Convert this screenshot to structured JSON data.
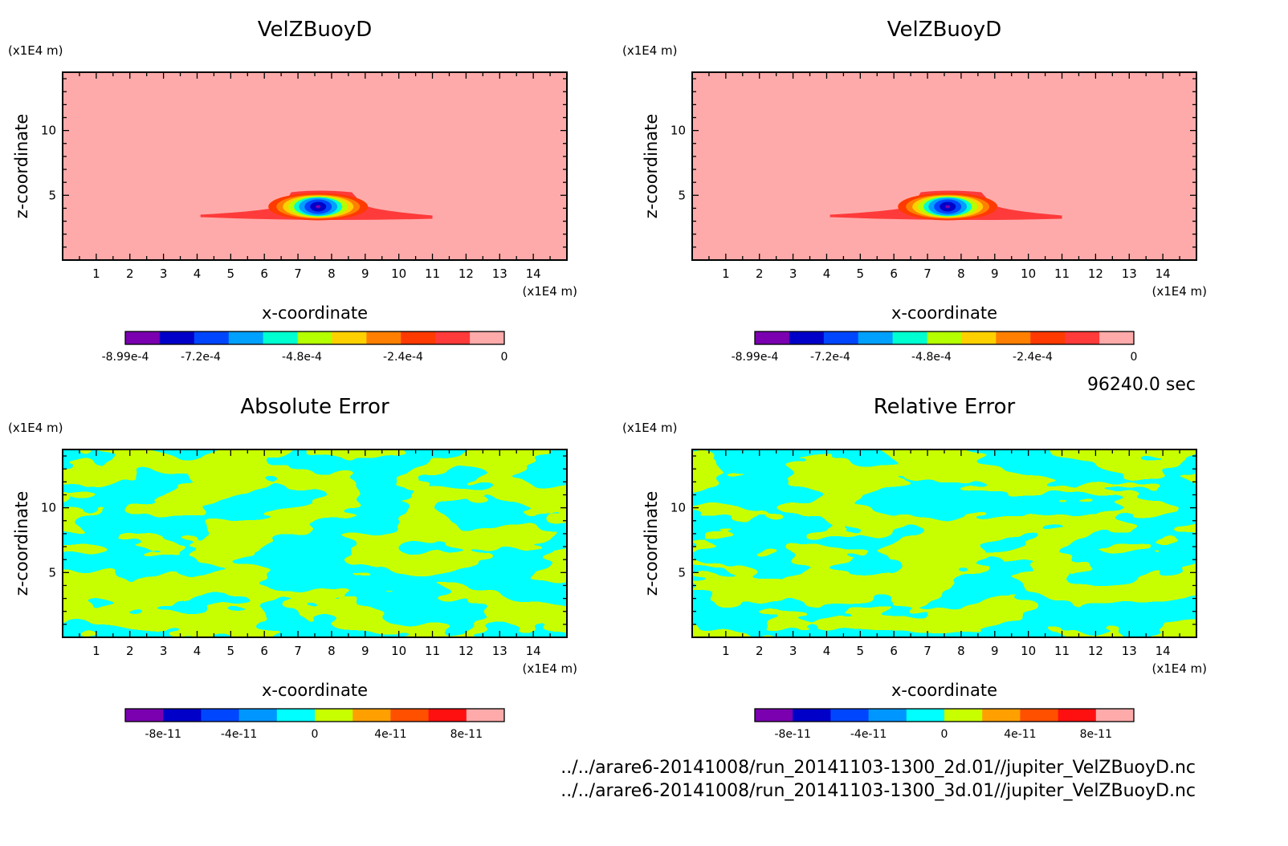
{
  "figure": {
    "time_label": "96240.0 sec",
    "files": [
      "../../arare6-20141008/run_20141103-1300_2d.01//jupiter_VelZBuoyD.nc",
      "../../arare6-20141008/run_20141103-1300_3d.01//jupiter_VelZBuoyD.nc"
    ]
  },
  "chart_data": [
    {
      "type": "heatmap",
      "title": "VelZBuoyD",
      "xlabel": "x-coordinate",
      "ylabel": "z-coordinate",
      "x_unit": "(x1E4 m)",
      "y_unit": "(x1E4 m)",
      "xlim": [
        0,
        15
      ],
      "ylim": [
        0,
        14.5
      ],
      "xticks": [
        1,
        2,
        3,
        4,
        5,
        6,
        7,
        8,
        9,
        10,
        11,
        12,
        13,
        14
      ],
      "yticks": [
        5,
        10
      ],
      "colorbar": {
        "colors": [
          "#7a00b0",
          "#0000c8",
          "#0046ff",
          "#00a0ff",
          "#00ffd0",
          "#b4ff00",
          "#ffd000",
          "#ff8000",
          "#ff3a00",
          "#ff3a3a",
          "#ffaaaa"
        ],
        "tick_labels": [
          "-8.99e-4",
          "-7.2e-4",
          "-4.8e-4",
          "-2.4e-4",
          "0"
        ],
        "tick_values": [
          -0.000899,
          -0.00072,
          -0.00048,
          -0.00024,
          0
        ],
        "range": [
          -0.000899,
          0
        ]
      },
      "features": [
        {
          "x": 7.6,
          "z": 4.0,
          "min_value": -0.000899
        }
      ]
    },
    {
      "type": "heatmap",
      "title": "VelZBuoyD",
      "xlabel": "x-coordinate",
      "ylabel": "z-coordinate",
      "x_unit": "(x1E4 m)",
      "y_unit": "(x1E4 m)",
      "xlim": [
        0,
        15
      ],
      "ylim": [
        0,
        14.5
      ],
      "xticks": [
        1,
        2,
        3,
        4,
        5,
        6,
        7,
        8,
        9,
        10,
        11,
        12,
        13,
        14
      ],
      "yticks": [
        5,
        10
      ],
      "colorbar": {
        "colors": [
          "#7a00b0",
          "#0000c8",
          "#0046ff",
          "#00a0ff",
          "#00ffd0",
          "#b4ff00",
          "#ffd000",
          "#ff8000",
          "#ff3a00",
          "#ff3a3a",
          "#ffaaaa"
        ],
        "tick_labels": [
          "-8.99e-4",
          "-7.2e-4",
          "-4.8e-4",
          "-2.4e-4",
          "0"
        ],
        "tick_values": [
          -0.000899,
          -0.00072,
          -0.00048,
          -0.00024,
          0
        ],
        "range": [
          -0.000899,
          0
        ]
      },
      "features": [
        {
          "x": 7.6,
          "z": 4.0,
          "min_value": -0.000899
        }
      ]
    },
    {
      "type": "heatmap",
      "title": "Absolute Error",
      "xlabel": "x-coordinate",
      "ylabel": "z-coordinate",
      "x_unit": "(x1E4 m)",
      "y_unit": "(x1E4 m)",
      "xlim": [
        0,
        15
      ],
      "ylim": [
        0,
        14.5
      ],
      "xticks": [
        1,
        2,
        3,
        4,
        5,
        6,
        7,
        8,
        9,
        10,
        11,
        12,
        13,
        14
      ],
      "yticks": [
        5,
        10
      ],
      "colorbar": {
        "colors": [
          "#7a00b0",
          "#0000c8",
          "#0046ff",
          "#0096ff",
          "#00ffff",
          "#c8ff00",
          "#ffa000",
          "#ff5000",
          "#ff1010",
          "#ffaaaa"
        ],
        "tick_labels": [
          "-8e-11",
          "-4e-11",
          "0",
          "4e-11",
          "8e-11"
        ],
        "tick_values": [
          -8e-11,
          -4e-11,
          0,
          4e-11,
          8e-11
        ],
        "range": [
          -1e-10,
          1e-10
        ]
      },
      "field_colors": [
        "#00ffff",
        "#c8ff00"
      ]
    },
    {
      "type": "heatmap",
      "title": "Relative Error",
      "xlabel": "x-coordinate",
      "ylabel": "z-coordinate",
      "x_unit": "(x1E4 m)",
      "y_unit": "(x1E4 m)",
      "xlim": [
        0,
        15
      ],
      "ylim": [
        0,
        14.5
      ],
      "xticks": [
        1,
        2,
        3,
        4,
        5,
        6,
        7,
        8,
        9,
        10,
        11,
        12,
        13,
        14
      ],
      "yticks": [
        5,
        10
      ],
      "colorbar": {
        "colors": [
          "#7a00b0",
          "#0000c8",
          "#0046ff",
          "#0096ff",
          "#00ffff",
          "#c8ff00",
          "#ffa000",
          "#ff5000",
          "#ff1010",
          "#ffaaaa"
        ],
        "tick_labels": [
          "-8e-11",
          "-4e-11",
          "0",
          "4e-11",
          "8e-11"
        ],
        "tick_values": [
          -8e-11,
          -4e-11,
          0,
          4e-11,
          8e-11
        ],
        "range": [
          -1e-10,
          1e-10
        ]
      },
      "field_colors": [
        "#00ffff",
        "#c8ff00"
      ]
    }
  ]
}
